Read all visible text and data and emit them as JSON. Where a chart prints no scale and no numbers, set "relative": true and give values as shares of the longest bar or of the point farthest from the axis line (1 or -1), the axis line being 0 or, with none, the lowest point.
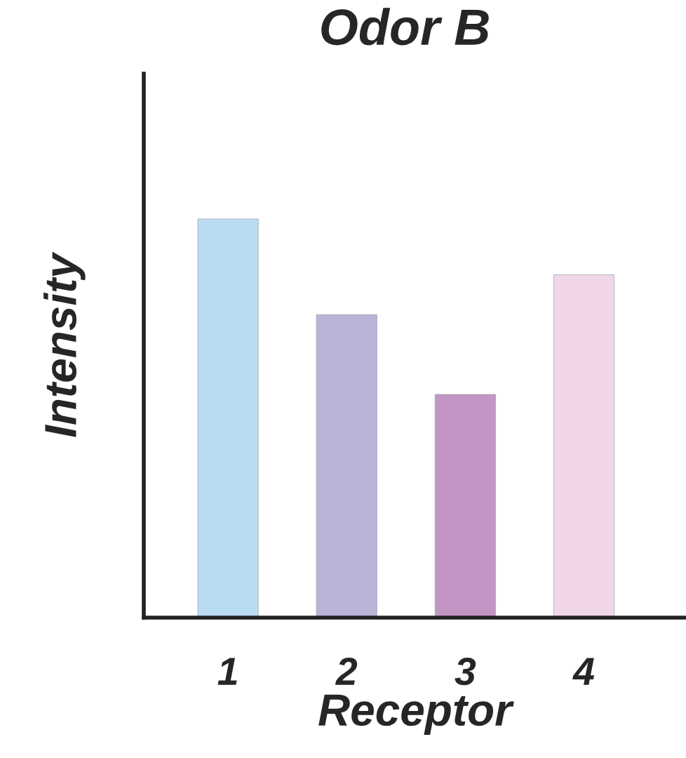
{
  "chart_data": {
    "type": "bar",
    "title": "Odor B",
    "xlabel": "Receptor",
    "ylabel": "Intensity",
    "relative": true,
    "categories": [
      "1",
      "2",
      "3",
      "4"
    ],
    "values": [
      1,
      0.76,
      0.56,
      0.86
    ],
    "colors": [
      "#badcf3",
      "#b9b3d8",
      "#c295c4",
      "#f0d6e8"
    ],
    "grid": false,
    "legend": false
  }
}
